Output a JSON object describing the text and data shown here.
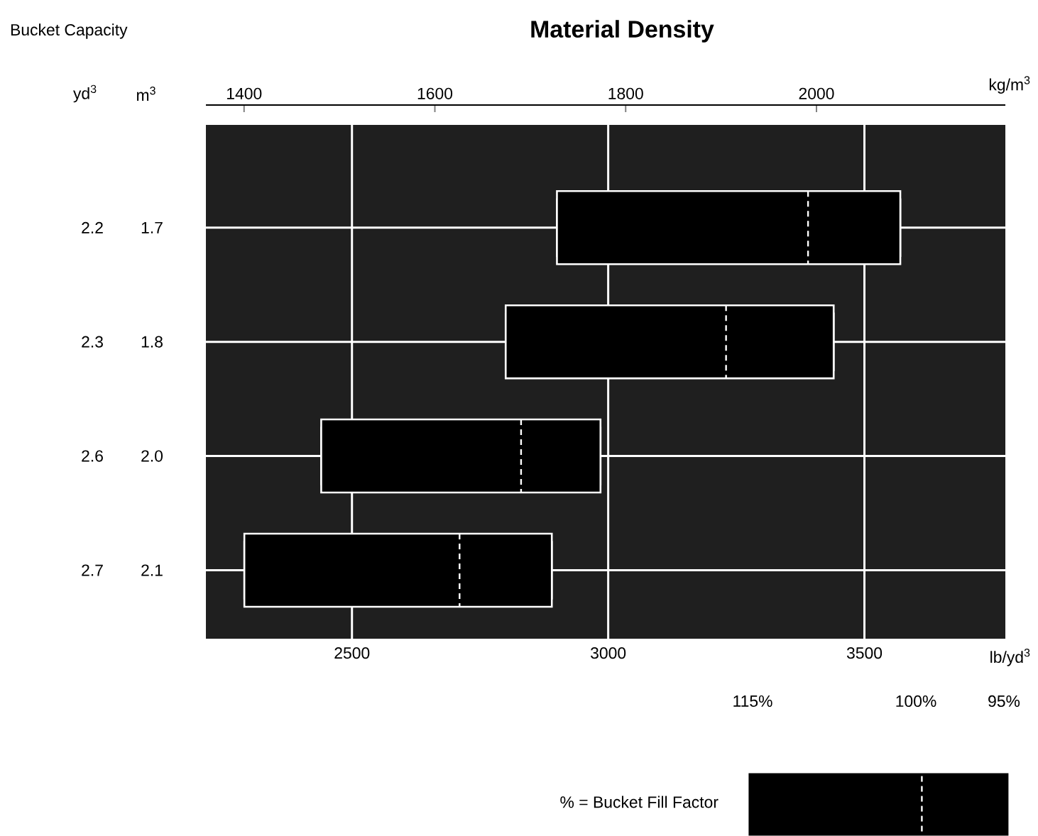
{
  "chart_data": {
    "type": "box",
    "orientation": "horizontal",
    "title": "Material Density",
    "ylabel": "Bucket Capacity",
    "xlabel": "lb/yd$^{3}$",
    "x2label": "kg/m$^{3}$",
    "categories": [
      "2.2",
      "2.3",
      "2.6",
      "2.7"
    ],
    "y2_categories": [
      "1.7",
      "1.8",
      "2.0",
      "2.1"
    ],
    "xlim": [
      2215,
      3775
    ],
    "xticks": [
      2500,
      3000,
      3500
    ],
    "x2lim": [
      1360,
      2198
    ],
    "x2ticks": [
      1400,
      1600,
      1800,
      2000
    ],
    "boxes": [
      {
        "low": 2900,
        "q1": 2900,
        "median": 3390,
        "q3": 3570,
        "high": 3570
      },
      {
        "low": 2800,
        "q1": 2800,
        "median": 3230,
        "q3": 3440,
        "high": 3440
      },
      {
        "low": 2440,
        "q1": 2440,
        "median": 2830,
        "q3": 2985,
        "high": 2985
      },
      {
        "low": 2290,
        "q1": 2290,
        "median": 2710,
        "q3": 2890,
        "high": 2890
      }
    ],
    "color": "#000000",
    "line_style": "dashed",
    "grid": true,
    "annotations": [
      "yd$^{3}$",
      "m$^{3}$",
      "% = Bucket Fill Factor",
      "115%",
      "100%",
      "95%"
    ]
  }
}
